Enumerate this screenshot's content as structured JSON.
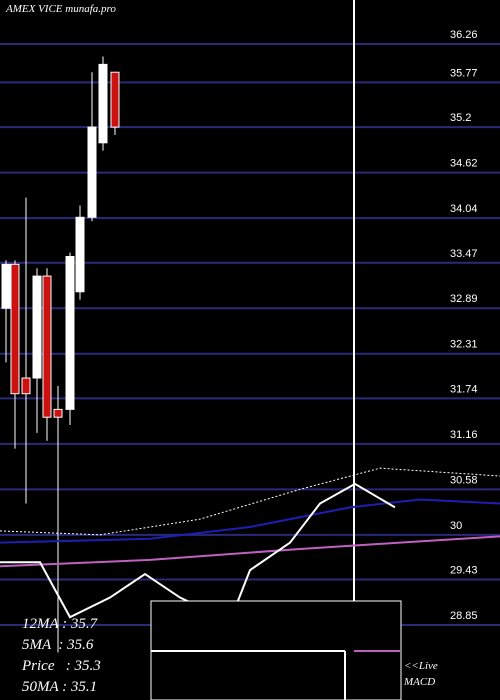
{
  "title": "AMEX  VICE munafa.pro",
  "chart_data": {
    "type": "candlestick",
    "y_ticks": [
      "36.26",
      "35.77",
      "35.2",
      "34.62",
      "34.04",
      "33.47",
      "32.89",
      "32.31",
      "31.74",
      "31.16",
      "30.58",
      "30",
      "29.43",
      "28.85"
    ],
    "ylim": [
      28.85,
      36.26
    ],
    "candles": [
      {
        "open": 32.89,
        "high": 33.5,
        "low": 32.2,
        "close": 33.45,
        "color": "white"
      },
      {
        "open": 33.45,
        "high": 33.5,
        "low": 31.1,
        "close": 31.8,
        "color": "red"
      },
      {
        "open": 31.8,
        "high": 34.3,
        "low": 30.4,
        "close": 32.0,
        "color": "red"
      },
      {
        "open": 32.0,
        "high": 33.4,
        "low": 31.3,
        "close": 33.3,
        "color": "white"
      },
      {
        "open": 33.3,
        "high": 33.4,
        "low": 31.2,
        "close": 31.5,
        "color": "red"
      },
      {
        "open": 31.5,
        "high": 31.9,
        "low": 28.5,
        "close": 31.6,
        "color": "red"
      },
      {
        "open": 31.6,
        "high": 33.6,
        "low": 31.4,
        "close": 33.55,
        "color": "white"
      },
      {
        "open": 33.1,
        "high": 34.2,
        "low": 33.0,
        "close": 34.05,
        "color": "white"
      },
      {
        "open": 34.05,
        "high": 35.9,
        "low": 34.0,
        "close": 35.2,
        "color": "white"
      },
      {
        "open": 35.0,
        "high": 36.1,
        "low": 34.9,
        "close": 36.0,
        "color": "white"
      },
      {
        "open": 35.9,
        "high": 35.9,
        "low": 35.1,
        "close": 35.2,
        "color": "red"
      }
    ],
    "ma_lines": [
      {
        "name": "MA-dotted",
        "color": "#ffffff",
        "style": "dotted",
        "values": [
          [
            0,
            30.05
          ],
          [
            100,
            30.0
          ],
          [
            200,
            30.2
          ],
          [
            300,
            30.58
          ],
          [
            380,
            30.85
          ],
          [
            500,
            30.75
          ]
        ]
      },
      {
        "name": "MA-blue",
        "color": "#1e1eb4",
        "values": [
          [
            0,
            29.9
          ],
          [
            150,
            29.95
          ],
          [
            250,
            30.1
          ],
          [
            350,
            30.35
          ],
          [
            420,
            30.45
          ],
          [
            500,
            30.4
          ]
        ]
      },
      {
        "name": "MA-magenta",
        "color": "#c060c0",
        "values": [
          [
            0,
            29.6
          ],
          [
            150,
            29.68
          ],
          [
            300,
            29.82
          ],
          [
            400,
            29.9
          ],
          [
            500,
            29.98
          ]
        ]
      }
    ],
    "vertical_marker_index": 28.5,
    "macd_line_values": [
      [
        0,
        29.65
      ],
      [
        40,
        29.65
      ],
      [
        70,
        28.95
      ],
      [
        110,
        29.2
      ],
      [
        145,
        29.5
      ],
      [
        180,
        29.2
      ],
      [
        230,
        28.9
      ],
      [
        250,
        29.55
      ],
      [
        290,
        29.9
      ],
      [
        320,
        30.4
      ],
      [
        355,
        30.65
      ],
      [
        395,
        30.35
      ]
    ]
  },
  "ma_summary": {
    "ma12": "12MA : 35.7",
    "ma5": "5MA  : 35.6",
    "price": "Price   : 35.3",
    "ma50": "50MA : 35.1"
  },
  "macd_label": {
    "line1": "<<Live",
    "line2": "MACD"
  }
}
